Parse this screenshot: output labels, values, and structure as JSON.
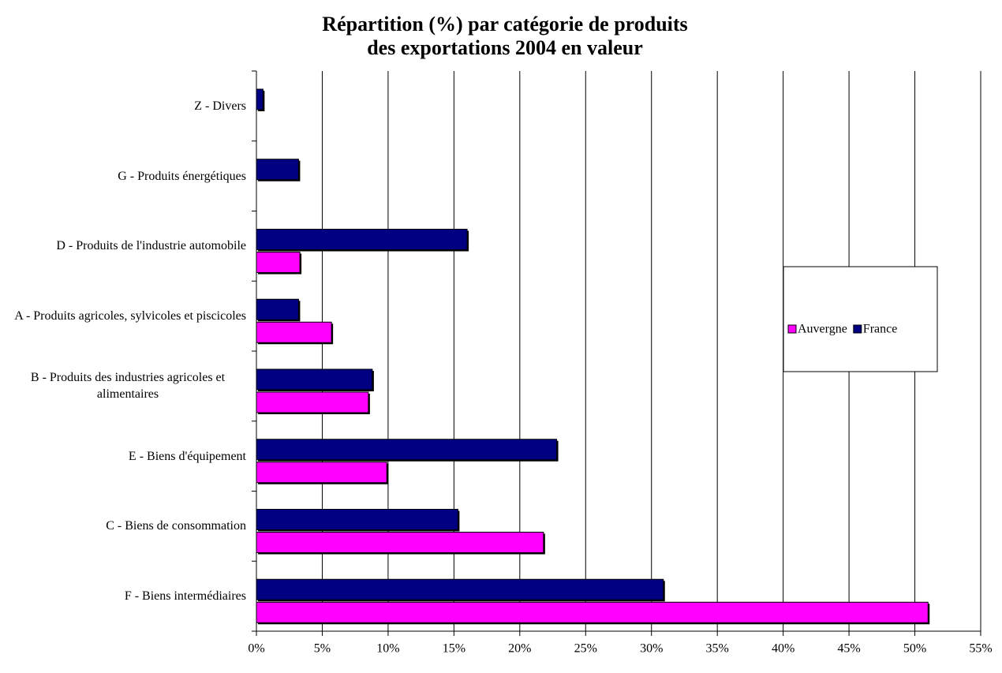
{
  "chart_data": {
    "type": "barh",
    "title": "Répartition (%) par catégorie de produits",
    "subtitle": "des exportations 2004 en valeur",
    "categories": [
      "F - Biens intermédiaires",
      "C - Biens de consommation",
      "E - Biens d'équipement",
      "B - Produits des industries agricoles et alimentaires",
      "A - Produits agricoles, sylvicoles et piscicoles",
      "D - Produits de l'industrie automobile",
      "G - Produits énergétiques",
      "Z - Divers"
    ],
    "series": [
      {
        "name": "Auvergne",
        "color": "#ff00ff",
        "values": [
          51.0,
          21.8,
          9.9,
          8.5,
          5.7,
          3.3,
          0,
          0
        ]
      },
      {
        "name": "France",
        "color": "#000080",
        "values": [
          30.9,
          15.3,
          22.8,
          8.8,
          3.2,
          16.0,
          3.2,
          0.5
        ]
      }
    ],
    "xlim": [
      0,
      55
    ],
    "xticks": [
      {
        "value": 0,
        "label": "0%"
      },
      {
        "value": 5,
        "label": "5%"
      },
      {
        "value": 10,
        "label": "10%"
      },
      {
        "value": 15,
        "label": "15%"
      },
      {
        "value": 20,
        "label": "20%"
      },
      {
        "value": 25,
        "label": "25%"
      },
      {
        "value": 30,
        "label": "30%"
      },
      {
        "value": 35,
        "label": "35%"
      },
      {
        "value": 40,
        "label": "40%"
      },
      {
        "value": 45,
        "label": "45%"
      },
      {
        "value": 50,
        "label": "50%"
      },
      {
        "value": 55,
        "label": "55%"
      }
    ],
    "grid": true,
    "legend": "right"
  }
}
